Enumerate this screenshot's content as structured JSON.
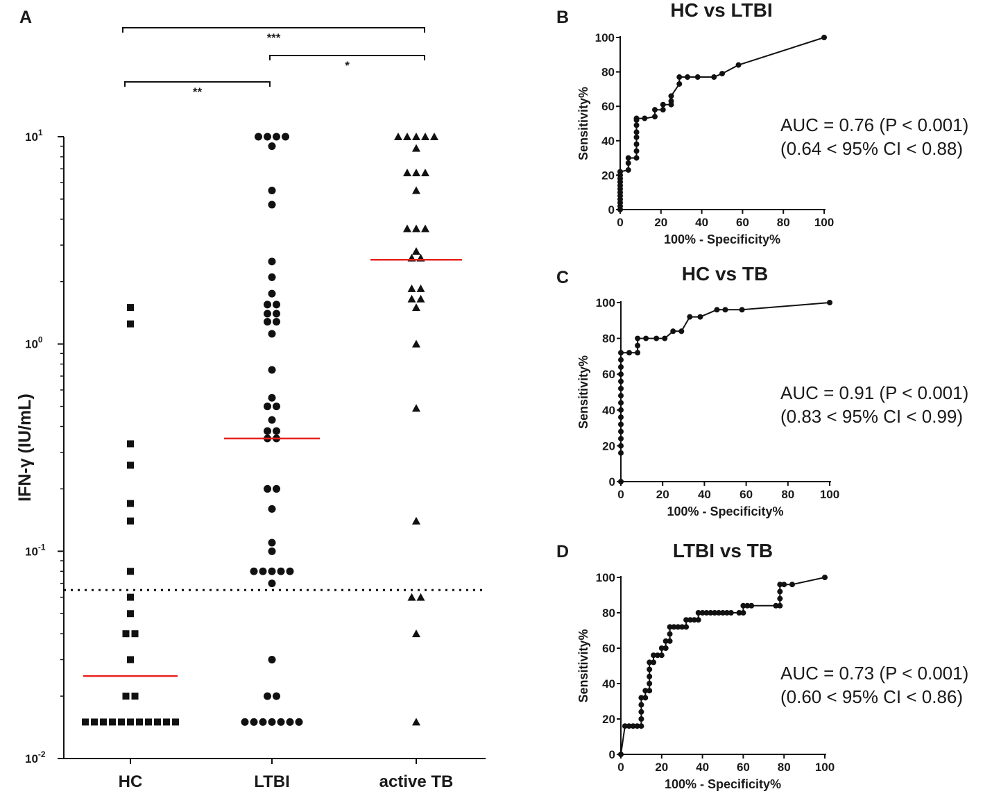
{
  "panels": {
    "A": {
      "letter": "A",
      "chart_data": {
        "type": "scatter",
        "subtype": "dot-plot",
        "y_scale": "log",
        "ylabel": "IFN-γ (IU/mL)",
        "ylim": [
          0.01,
          10
        ],
        "y_ticks": [
          {
            "value": 10,
            "base": "10",
            "exp": "1"
          },
          {
            "value": 1,
            "base": "10",
            "exp": "0"
          },
          {
            "value": 0.1,
            "base": "10",
            "exp": "-1"
          },
          {
            "value": 0.01,
            "base": "10",
            "exp": "-2"
          }
        ],
        "cutoff": 0.065,
        "categories": [
          "HC",
          "LTBI",
          "active TB"
        ],
        "groups": [
          {
            "name": "HC",
            "marker": "square",
            "median": 0.025,
            "values": [
              1.5,
              1.25,
              0.33,
              0.26,
              0.17,
              0.14,
              0.08,
              0.06,
              0.05,
              0.04,
              0.04,
              0.03,
              0.02,
              0.02,
              0.015,
              0.015,
              0.015,
              0.015,
              0.015,
              0.015,
              0.015,
              0.015,
              0.015,
              0.015,
              0.015
            ]
          },
          {
            "name": "LTBI",
            "marker": "circle",
            "median": 0.35,
            "values": [
              10,
              10,
              9.7,
              9.7,
              9.0,
              5.5,
              4.7,
              2.5,
              2.1,
              1.75,
              1.55,
              1.45,
              1.4,
              1.4,
              1.28,
              1.25,
              1.12,
              0.75,
              0.55,
              0.5,
              0.47,
              0.43,
              0.38,
              0.37,
              0.35,
              0.34,
              0.2,
              0.2,
              0.16,
              0.11,
              0.1,
              0.08,
              0.08,
              0.08,
              0.08,
              0.08,
              0.07,
              0.03,
              0.02,
              0.02,
              0.015,
              0.015,
              0.015,
              0.015,
              0.015,
              0.015,
              0.015
            ]
          },
          {
            "name": "active TB",
            "marker": "triangle",
            "median": 2.55,
            "values": [
              10,
              10,
              10,
              10,
              10,
              8.8,
              6.7,
              6.3,
              6.3,
              5.5,
              3.6,
              3.5,
              3.4,
              2.8,
              2.6,
              2.5,
              1.85,
              1.75,
              1.65,
              1.55,
              1.5,
              1.0,
              0.49,
              0.14,
              0.06,
              0.06,
              0.04,
              0.015
            ]
          }
        ],
        "comparisons": [
          {
            "from": "HC",
            "to": "active TB",
            "label": "***"
          },
          {
            "from": "LTBI",
            "to": "active TB",
            "label": "*"
          },
          {
            "from": "HC",
            "to": "LTBI",
            "label": "**"
          }
        ]
      }
    },
    "B": {
      "letter": "B",
      "auc_line": "AUC = 0.76 (P < 0.001)",
      "ci_line": "(0.64 < 95% CI < 0.88)",
      "chart_data": {
        "type": "line",
        "title": "HC vs LTBI",
        "xlabel": "100% - Specificity%",
        "ylabel": "Sensitivity%",
        "xlim": [
          0,
          100
        ],
        "ylim": [
          0,
          100
        ],
        "x_ticks": [
          0,
          20,
          40,
          60,
          80,
          100
        ],
        "y_ticks": [
          0,
          20,
          40,
          60,
          80,
          100
        ],
        "points": [
          [
            0,
            0
          ],
          [
            0,
            2
          ],
          [
            0,
            4
          ],
          [
            0,
            6
          ],
          [
            0,
            8
          ],
          [
            0,
            10
          ],
          [
            0,
            12
          ],
          [
            0,
            14
          ],
          [
            0,
            16
          ],
          [
            0,
            18
          ],
          [
            0,
            20
          ],
          [
            0,
            22
          ],
          [
            4,
            23
          ],
          [
            4,
            27
          ],
          [
            4,
            30
          ],
          [
            8,
            30
          ],
          [
            8,
            34
          ],
          [
            8,
            38
          ],
          [
            8,
            42
          ],
          [
            8,
            45
          ],
          [
            8,
            49
          ],
          [
            8,
            52
          ],
          [
            8,
            53
          ],
          [
            12,
            53
          ],
          [
            17,
            54
          ],
          [
            17,
            58
          ],
          [
            21,
            58
          ],
          [
            21,
            61
          ],
          [
            25,
            61
          ],
          [
            25,
            63
          ],
          [
            25,
            66
          ],
          [
            29,
            73
          ],
          [
            29,
            77
          ],
          [
            33,
            77
          ],
          [
            38,
            77
          ],
          [
            46,
            77
          ],
          [
            50,
            79
          ],
          [
            58,
            84
          ],
          [
            100,
            100
          ]
        ]
      }
    },
    "C": {
      "letter": "C",
      "auc_line": "AUC = 0.91 (P < 0.001)",
      "ci_line": "(0.83 < 95% CI < 0.99)",
      "chart_data": {
        "type": "line",
        "title": "HC vs TB",
        "xlabel": "100% - Specificity%",
        "ylabel": "Sensitivity%",
        "xlim": [
          0,
          100
        ],
        "ylim": [
          0,
          100
        ],
        "x_ticks": [
          0,
          20,
          40,
          60,
          80,
          100
        ],
        "y_ticks": [
          0,
          20,
          40,
          60,
          80,
          100
        ],
        "points": [
          [
            0,
            0
          ],
          [
            0,
            16
          ],
          [
            0,
            20
          ],
          [
            0,
            24
          ],
          [
            0,
            28
          ],
          [
            0,
            32
          ],
          [
            0,
            36
          ],
          [
            0,
            40
          ],
          [
            0,
            44
          ],
          [
            0,
            48
          ],
          [
            0,
            52
          ],
          [
            0,
            56
          ],
          [
            0,
            60
          ],
          [
            0,
            64
          ],
          [
            0,
            68
          ],
          [
            0,
            72
          ],
          [
            4,
            72
          ],
          [
            8,
            72
          ],
          [
            8,
            76
          ],
          [
            8,
            80
          ],
          [
            12,
            80
          ],
          [
            17,
            80
          ],
          [
            21,
            80
          ],
          [
            25,
            84
          ],
          [
            29,
            84
          ],
          [
            33,
            92
          ],
          [
            38,
            92
          ],
          [
            46,
            96
          ],
          [
            50,
            96
          ],
          [
            58,
            96
          ],
          [
            100,
            100
          ]
        ]
      }
    },
    "D": {
      "letter": "D",
      "auc_line": "AUC = 0.73 (P < 0.001)",
      "ci_line": "(0.60 < 95% CI < 0.86)",
      "chart_data": {
        "type": "line",
        "title": "LTBI vs TB",
        "xlabel": "100% - Specificity%",
        "ylabel": "Sensitivity%",
        "xlim": [
          0,
          100
        ],
        "ylim": [
          0,
          100
        ],
        "x_ticks": [
          0,
          20,
          40,
          60,
          80,
          100
        ],
        "y_ticks": [
          0,
          20,
          40,
          60,
          80,
          100
        ],
        "points": [
          [
            0,
            0
          ],
          [
            2,
            16
          ],
          [
            4,
            16
          ],
          [
            6,
            16
          ],
          [
            8,
            16
          ],
          [
            10,
            16
          ],
          [
            10,
            20
          ],
          [
            10,
            24
          ],
          [
            10,
            28
          ],
          [
            10,
            32
          ],
          [
            12,
            32
          ],
          [
            12,
            36
          ],
          [
            14,
            36
          ],
          [
            14,
            40
          ],
          [
            14,
            44
          ],
          [
            14,
            48
          ],
          [
            14,
            52
          ],
          [
            16,
            52
          ],
          [
            16,
            56
          ],
          [
            18,
            56
          ],
          [
            20,
            56
          ],
          [
            20,
            60
          ],
          [
            22,
            60
          ],
          [
            22,
            64
          ],
          [
            24,
            64
          ],
          [
            24,
            68
          ],
          [
            24,
            72
          ],
          [
            26,
            72
          ],
          [
            28,
            72
          ],
          [
            30,
            72
          ],
          [
            32,
            72
          ],
          [
            32,
            76
          ],
          [
            34,
            76
          ],
          [
            36,
            76
          ],
          [
            38,
            76
          ],
          [
            38,
            80
          ],
          [
            40,
            80
          ],
          [
            42,
            80
          ],
          [
            44,
            80
          ],
          [
            46,
            80
          ],
          [
            48,
            80
          ],
          [
            50,
            80
          ],
          [
            52,
            80
          ],
          [
            54,
            80
          ],
          [
            58,
            80
          ],
          [
            60,
            80
          ],
          [
            60,
            84
          ],
          [
            62,
            84
          ],
          [
            64,
            84
          ],
          [
            76,
            84
          ],
          [
            78,
            84
          ],
          [
            78,
            88
          ],
          [
            78,
            92
          ],
          [
            78,
            96
          ],
          [
            80,
            96
          ],
          [
            84,
            96
          ],
          [
            100,
            100
          ]
        ]
      }
    }
  },
  "colors": {
    "ink": "#111111",
    "median": "#e8211d",
    "text": "#1a1a1a"
  }
}
